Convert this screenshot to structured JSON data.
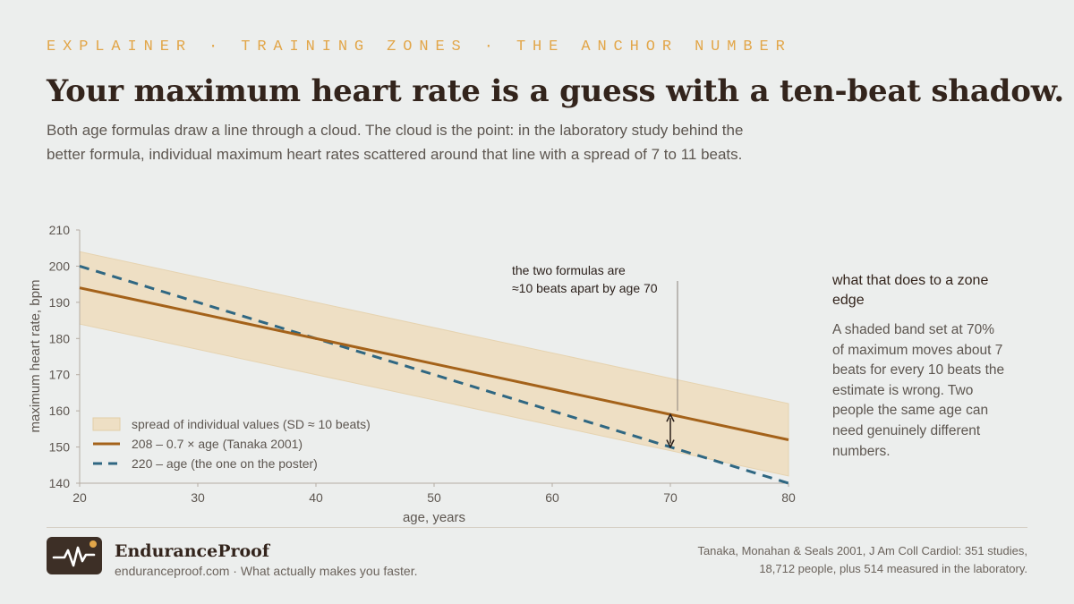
{
  "header": {
    "kicker": "EXPLAINER · TRAINING ZONES · THE ANCHOR NUMBER",
    "title": "Your maximum heart rate is a guess with a ten-beat shadow.",
    "subtitle": "Both age formulas draw a line through a cloud. The cloud is the point: in the laboratory study behind the better formula, individual maximum heart rates scattered around that line with a spread of 7 to 11 beats."
  },
  "chart_data": {
    "type": "line",
    "xlabel": "age, years",
    "ylabel": "maximum heart rate, bpm",
    "xlim": [
      20,
      80
    ],
    "ylim": [
      140,
      210
    ],
    "xticks": [
      20,
      30,
      40,
      50,
      60,
      70,
      80
    ],
    "yticks": [
      140,
      150,
      160,
      170,
      180,
      190,
      200,
      210
    ],
    "grid": false,
    "legend_position": "bottom-left",
    "series": [
      {
        "name": "spread of individual values (SD ≈ 10 beats)",
        "kind": "band",
        "x": [
          20,
          80
        ],
        "lower": [
          184,
          142
        ],
        "upper": [
          204,
          162
        ],
        "color": "#eedfc4"
      },
      {
        "name": "208 – 0.7 × age (Tanaka 2001)",
        "kind": "line",
        "x": [
          20,
          80
        ],
        "y": [
          194,
          152
        ],
        "color": "#a4621a"
      },
      {
        "name": "220 – age (the one on the poster)",
        "kind": "dashed",
        "x": [
          20,
          80
        ],
        "y": [
          200,
          140
        ],
        "color": "#2f6782"
      }
    ],
    "annotations": [
      {
        "text_lines": [
          "the two formulas are",
          "≈10 beats apart by age 70"
        ],
        "x": 70,
        "y_from": 150,
        "y_to": 159
      }
    ]
  },
  "sidebar": {
    "heading": "what that does to a zone edge",
    "body": "A shaded band set at 70% of maximum moves about 7 beats for every 10 beats the estimate is wrong. Two people the same age can need genuinely different numbers."
  },
  "footer": {
    "brand": "EnduranceProof",
    "tagline": "enduranceproof.com · What actually makes you faster.",
    "source": "Tanaka, Monahan & Seals 2001, J Am Coll Cardiol: 351 studies, 18,712 people, plus 514 measured in the laboratory.",
    "logo_icon": "heartbeat-pulse-icon",
    "accent_color": "#e2a649"
  }
}
